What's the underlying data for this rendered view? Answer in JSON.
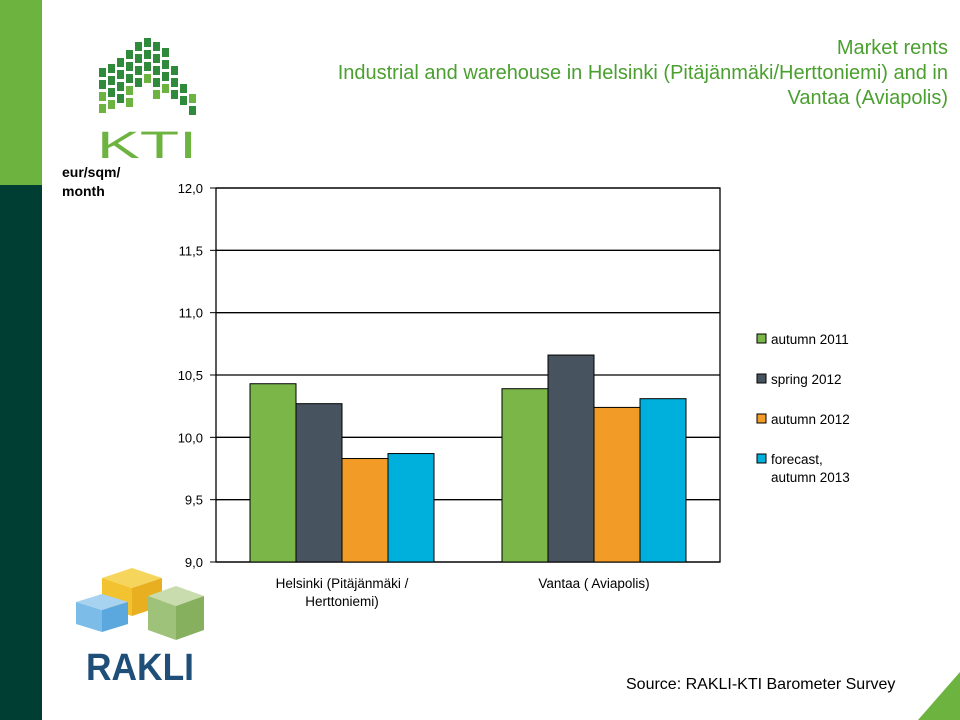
{
  "page": {
    "title_lines": [
      "Market rents",
      "Industrial and warehouse in Helsinki (Pitäjänmäki/Herttoniemi) and in",
      "Vantaa (Aviapolis)"
    ],
    "unit_lines": [
      "eur/sqm/",
      "month"
    ],
    "source": "Source: RAKLI-KTI Barometer Survey",
    "logos": {
      "top": "KTI",
      "bottom": "RAKLI"
    }
  },
  "chart_data": {
    "type": "bar",
    "categories": [
      [
        "Helsinki (Pitäjänmäki /",
        "Herttoniemi)"
      ],
      [
        "Vantaa ( Aviapolis)"
      ]
    ],
    "series": [
      {
        "name": "autumn 2011",
        "color": "#7ab648",
        "values": [
          10.43,
          10.39
        ]
      },
      {
        "name": "spring 2012",
        "color": "#47535e",
        "values": [
          10.27,
          10.66
        ]
      },
      {
        "name": "autumn 2012",
        "color": "#f29b26",
        "values": [
          9.83,
          10.24
        ]
      },
      {
        "name": "forecast, autumn 2013",
        "legend_lines": [
          "forecast,",
          "autumn 2013"
        ],
        "color": "#00b0dc",
        "values": [
          9.87,
          10.31
        ]
      }
    ],
    "ylim": [
      9.0,
      12.0
    ],
    "yticks": [
      "9,0",
      "9,5",
      "10,0",
      "10,5",
      "11,0",
      "11,5",
      "12,0"
    ],
    "grid": true,
    "legend_position": "right"
  }
}
